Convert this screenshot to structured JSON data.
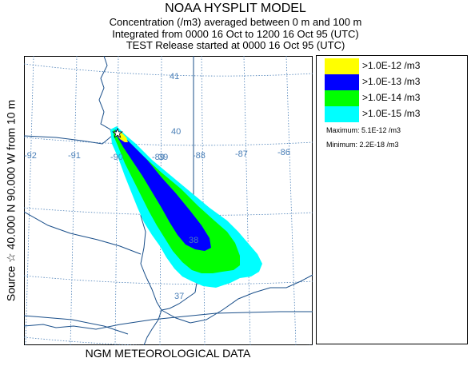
{
  "header": {
    "title": "NOAA HYSPLIT MODEL",
    "line2": "Concentration  (/m3) averaged between     0 m and   100 m",
    "line3": "Integrated from 0000 16 Oct to 1200 16 Oct 95 (UTC)",
    "line4": "TEST Release started at 0000 16 Oct 95 (UTC)"
  },
  "source_label": "Source ☆ 40.000  N  90.000  W   from   10 m",
  "footer": "NGM  METEOROLOGICAL DATA",
  "map": {
    "lat_labels": [
      "41",
      "40",
      "39",
      "38",
      "37"
    ],
    "lon_labels": [
      "-92",
      "-91",
      "-90",
      "-89",
      "-88",
      "-87",
      "-86"
    ],
    "grid_color": "#4a7fb7",
    "boundary_color": "#1a4f8a"
  },
  "legend": {
    "items": [
      {
        "label": ">1.0E-12 /m3",
        "color": "#ffff00"
      },
      {
        "label": ">1.0E-13 /m3",
        "color": "#0000ff"
      },
      {
        "label": ">1.0E-14 /m3",
        "color": "#00ff00"
      },
      {
        "label": ">1.0E-15 /m3",
        "color": "#00ffff"
      }
    ],
    "maximum": "Maximum: 5.1E-12 /m3",
    "minimum": "Minimum: 2.2E-18 /m3"
  }
}
